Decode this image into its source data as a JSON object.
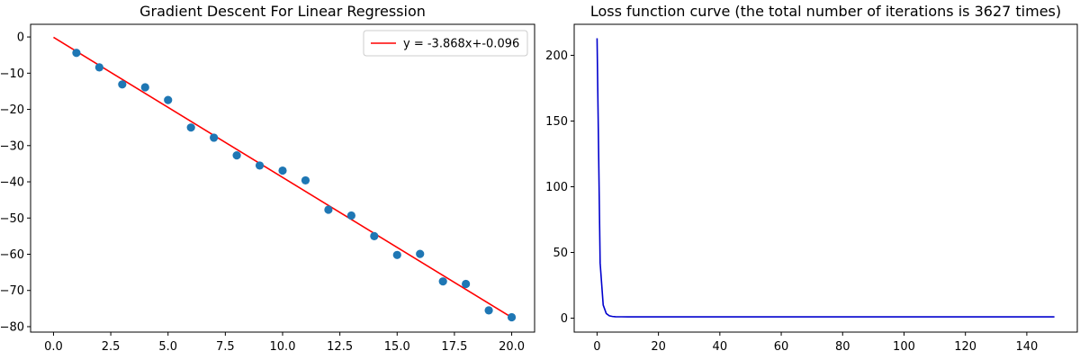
{
  "chart_data": [
    {
      "type": "scatter",
      "title": "Gradient Descent For Linear Regression",
      "xlabel": "",
      "ylabel": "",
      "xlim": [
        -1.0,
        21.0
      ],
      "ylim": [
        -81.5,
        3.5
      ],
      "xticks": [
        0.0,
        2.5,
        5.0,
        7.5,
        10.0,
        12.5,
        15.0,
        17.5,
        20.0
      ],
      "xtick_labels": [
        "0.0",
        "2.5",
        "5.0",
        "7.5",
        "10.0",
        "12.5",
        "15.0",
        "17.5",
        "20.0"
      ],
      "yticks": [
        0,
        -10,
        -20,
        -30,
        -40,
        -50,
        -60,
        -70,
        -80
      ],
      "ytick_labels": [
        "0",
        "−10",
        "−20",
        "−30",
        "−40",
        "−50",
        "−60",
        "−70",
        "−80"
      ],
      "grid": false,
      "legend_position": "top-right",
      "points": {
        "x": [
          1,
          2,
          3,
          4,
          5,
          6,
          7,
          8,
          9,
          10,
          11,
          12,
          13,
          14,
          15,
          16,
          17,
          18,
          19,
          20
        ],
        "y": [
          -4.4,
          -8.4,
          -13.1,
          -13.9,
          -17.4,
          -25.0,
          -27.8,
          -32.7,
          -35.5,
          -36.9,
          -39.6,
          -47.7,
          -49.3,
          -55.0,
          -60.2,
          -59.9,
          -67.5,
          -68.2,
          -75.5,
          -77.4
        ],
        "color": "#1f77b4"
      },
      "series": [
        {
          "name": "y = -3.868x+-0.096",
          "kind": "line",
          "x": [
            0,
            20
          ],
          "y": [
            -0.096,
            -77.456
          ],
          "color": "#ff0000"
        }
      ]
    },
    {
      "type": "line",
      "title": "Loss function curve (the total number of iterations is 3627 times)",
      "xlabel": "",
      "ylabel": "",
      "xlim": [
        -7.45,
        156.45
      ],
      "ylim": [
        -10.6,
        223.6
      ],
      "xticks": [
        0,
        20,
        40,
        60,
        80,
        100,
        120,
        140
      ],
      "xtick_labels": [
        "0",
        "20",
        "40",
        "60",
        "80",
        "100",
        "120",
        "140"
      ],
      "yticks": [
        0,
        50,
        100,
        150,
        200
      ],
      "ytick_labels": [
        "0",
        "50",
        "100",
        "150",
        "200"
      ],
      "grid": false,
      "series": [
        {
          "name": "",
          "color": "#0000cd",
          "x": [
            0,
            1,
            2,
            3,
            4,
            5,
            6,
            8,
            10,
            20,
            40,
            60,
            80,
            100,
            120,
            149
          ],
          "y": [
            213,
            42,
            10,
            3.5,
            1.8,
            1.3,
            1.1,
            1.05,
            1.0,
            1.0,
            1.0,
            1.0,
            1.0,
            1.0,
            1.0,
            1.0
          ]
        }
      ]
    }
  ]
}
